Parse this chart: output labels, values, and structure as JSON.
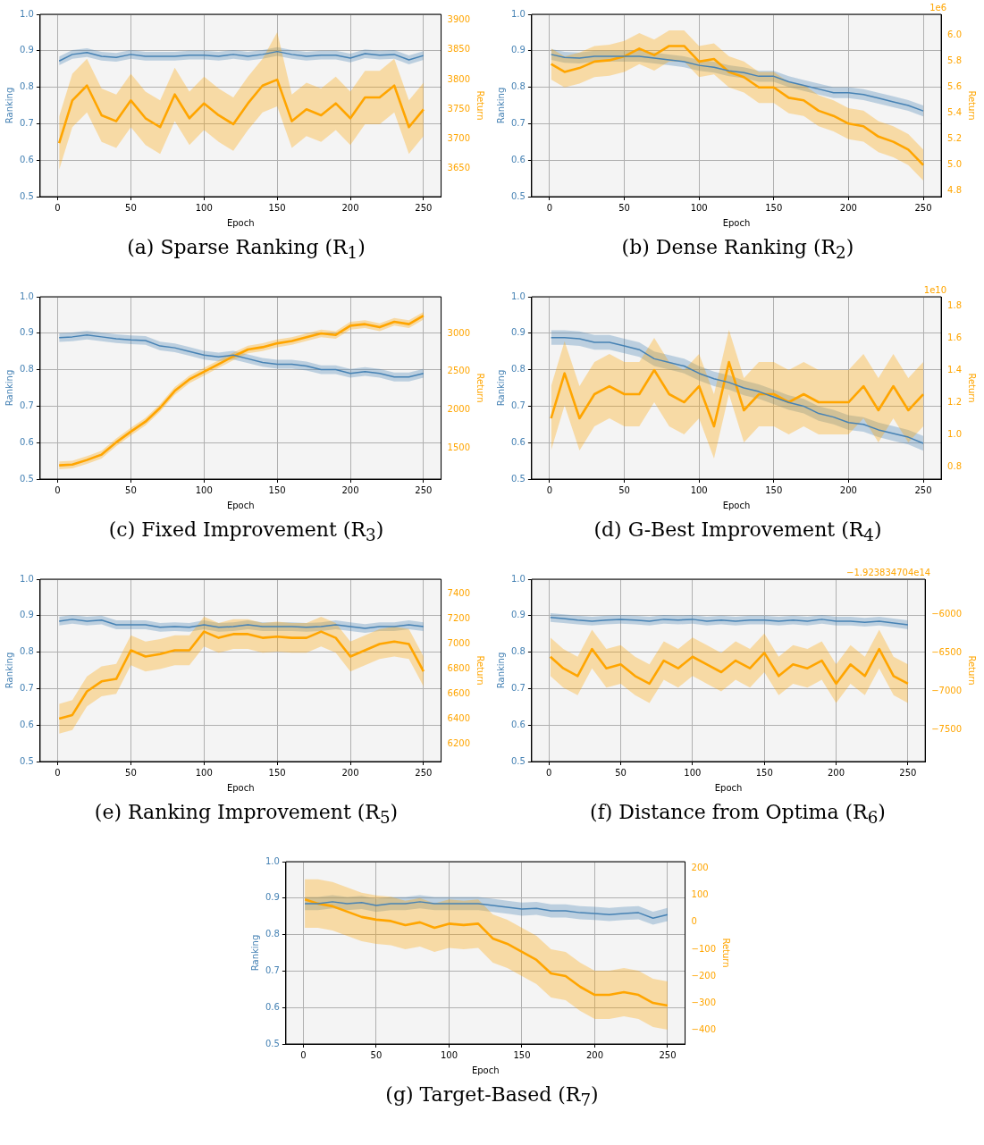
{
  "chart_data": [
    {
      "type": "line",
      "title": "(a) Sparse Ranking (R$_{1}$)",
      "xlabel": "Epoch",
      "ylabel": "Ranking",
      "y2label": "Return",
      "grid": true,
      "x": [
        1,
        10,
        20,
        30,
        40,
        50,
        60,
        70,
        80,
        90,
        100,
        110,
        120,
        130,
        140,
        150,
        160,
        170,
        180,
        190,
        200,
        210,
        220,
        230,
        240,
        250
      ],
      "xlim": [
        -12,
        262
      ],
      "xticks": [
        0,
        50,
        100,
        150,
        200,
        250
      ],
      "ylim": [
        0.5,
        1.0
      ],
      "yticks": [
        {
          "value": 0.5,
          "label": "0.5"
        },
        {
          "value": 0.6,
          "label": "0.6"
        },
        {
          "value": 0.7,
          "label": "0.7"
        },
        {
          "value": 0.8,
          "label": "0.8"
        },
        {
          "value": 0.9,
          "label": "0.9"
        },
        {
          "value": 1.0,
          "label": "1.0"
        }
      ],
      "y2lim": [
        3603,
        3910
      ],
      "y2ticks": [
        3650,
        3700,
        3750,
        3800,
        3850,
        3900
      ],
      "series": [
        {
          "color": "#4682b4",
          "values": [
            0.872,
            0.89,
            0.895,
            0.885,
            0.882,
            0.89,
            0.885,
            0.885,
            0.885,
            0.888,
            0.888,
            0.885,
            0.89,
            0.885,
            0.89,
            0.898,
            0.89,
            0.885,
            0.888,
            0.888,
            0.88,
            0.892,
            0.888,
            0.89,
            0.875,
            0.887
          ],
          "lower": [
            0.86,
            0.878,
            0.883,
            0.873,
            0.87,
            0.878,
            0.873,
            0.873,
            0.873,
            0.876,
            0.876,
            0.873,
            0.878,
            0.873,
            0.878,
            0.886,
            0.878,
            0.873,
            0.876,
            0.876,
            0.868,
            0.88,
            0.876,
            0.878,
            0.863,
            0.875
          ],
          "upper": [
            0.884,
            0.902,
            0.907,
            0.897,
            0.894,
            0.902,
            0.897,
            0.897,
            0.897,
            0.9,
            0.9,
            0.897,
            0.902,
            0.897,
            0.902,
            0.91,
            0.902,
            0.897,
            0.9,
            0.9,
            0.892,
            0.904,
            0.9,
            0.902,
            0.887,
            0.899
          ]
        },
        {
          "color": "#ffa500",
          "axis": "y2",
          "values": [
            3693,
            3765,
            3790,
            3740,
            3730,
            3765,
            3735,
            3720,
            3775,
            3735,
            3760,
            3740,
            3725,
            3760,
            3790,
            3800,
            3730,
            3750,
            3740,
            3760,
            3735,
            3770,
            3770,
            3790,
            3720,
            3750
          ],
          "lower": [
            3648,
            3720,
            3745,
            3695,
            3685,
            3720,
            3690,
            3675,
            3730,
            3690,
            3715,
            3695,
            3680,
            3715,
            3745,
            3755,
            3685,
            3705,
            3695,
            3715,
            3690,
            3725,
            3725,
            3745,
            3675,
            3705
          ],
          "upper": [
            3738,
            3810,
            3835,
            3785,
            3775,
            3810,
            3780,
            3765,
            3820,
            3780,
            3805,
            3785,
            3770,
            3805,
            3835,
            3880,
            3775,
            3795,
            3785,
            3805,
            3780,
            3815,
            3815,
            3835,
            3765,
            3795
          ]
        }
      ]
    },
    {
      "type": "line",
      "title": "(b) Dense Ranking (R$_{2}$)",
      "xlabel": "Epoch",
      "ylabel": "Ranking",
      "y2label": "Return",
      "grid": true,
      "annotations": [
        "1e6"
      ],
      "x": [
        1,
        10,
        20,
        30,
        40,
        50,
        60,
        70,
        80,
        90,
        100,
        110,
        120,
        130,
        140,
        150,
        160,
        170,
        180,
        190,
        200,
        210,
        220,
        230,
        240,
        250
      ],
      "xlim": [
        -12,
        262
      ],
      "xticks": [
        0,
        50,
        100,
        150,
        200,
        250
      ],
      "ylim": [
        0.5,
        1.0
      ],
      "yticks": [
        {
          "value": 0.5,
          "label": "0.5"
        },
        {
          "value": 0.6,
          "label": "0.6"
        },
        {
          "value": 0.7,
          "label": "0.7"
        },
        {
          "value": 0.8,
          "label": "0.8"
        },
        {
          "value": 0.9,
          "label": "0.9"
        },
        {
          "value": 1.0,
          "label": "1.0"
        }
      ],
      "y2lim": [
        4.756,
        6.165
      ],
      "y2ticks": [
        {
          "value": 4.8,
          "label": "4.8"
        },
        {
          "value": 5.0,
          "label": "5.0"
        },
        {
          "value": 5.2,
          "label": "5.2"
        },
        {
          "value": 5.4,
          "label": "5.4"
        },
        {
          "value": 5.6,
          "label": "5.6"
        },
        {
          "value": 5.8,
          "label": "5.8"
        },
        {
          "value": 6.0,
          "label": "6.0"
        }
      ],
      "series": [
        {
          "color": "#4682b4",
          "values": [
            0.89,
            0.882,
            0.88,
            0.885,
            0.885,
            0.885,
            0.885,
            0.88,
            0.875,
            0.87,
            0.86,
            0.855,
            0.845,
            0.84,
            0.83,
            0.83,
            0.815,
            0.805,
            0.795,
            0.785,
            0.785,
            0.78,
            0.77,
            0.76,
            0.75,
            0.735
          ],
          "lower": [
            0.875,
            0.867,
            0.865,
            0.87,
            0.87,
            0.87,
            0.87,
            0.865,
            0.86,
            0.855,
            0.845,
            0.84,
            0.83,
            0.825,
            0.815,
            0.815,
            0.8,
            0.79,
            0.78,
            0.77,
            0.77,
            0.765,
            0.755,
            0.745,
            0.735,
            0.72
          ],
          "upper": [
            0.905,
            0.897,
            0.895,
            0.9,
            0.9,
            0.9,
            0.9,
            0.895,
            0.89,
            0.885,
            0.875,
            0.87,
            0.86,
            0.855,
            0.845,
            0.845,
            0.83,
            0.82,
            0.81,
            0.8,
            0.8,
            0.795,
            0.785,
            0.775,
            0.765,
            0.75
          ]
        },
        {
          "color": "#ffa500",
          "axis": "y2",
          "values": [
            5.78,
            5.72,
            5.75,
            5.8,
            5.81,
            5.84,
            5.9,
            5.85,
            5.92,
            5.92,
            5.8,
            5.82,
            5.72,
            5.68,
            5.6,
            5.6,
            5.52,
            5.5,
            5.42,
            5.38,
            5.32,
            5.3,
            5.22,
            5.18,
            5.12,
            5.0
          ],
          "lower": [
            5.66,
            5.6,
            5.63,
            5.68,
            5.69,
            5.72,
            5.78,
            5.73,
            5.8,
            5.8,
            5.68,
            5.7,
            5.6,
            5.56,
            5.48,
            5.48,
            5.4,
            5.38,
            5.3,
            5.26,
            5.2,
            5.18,
            5.1,
            5.06,
            5.0,
            4.88
          ],
          "upper": [
            5.9,
            5.84,
            5.87,
            5.92,
            5.93,
            5.96,
            6.02,
            5.97,
            6.04,
            6.04,
            5.92,
            5.94,
            5.84,
            5.8,
            5.72,
            5.72,
            5.64,
            5.62,
            5.54,
            5.5,
            5.44,
            5.42,
            5.34,
            5.3,
            5.24,
            5.12
          ]
        }
      ]
    },
    {
      "type": "line",
      "title": "(c) Fixed Improvement (R$_{3}$)",
      "xlabel": "Epoch",
      "ylabel": "Ranking",
      "y2label": "Return",
      "grid": true,
      "x": [
        1,
        10,
        20,
        30,
        40,
        50,
        60,
        70,
        80,
        90,
        100,
        110,
        120,
        130,
        140,
        150,
        160,
        170,
        180,
        190,
        200,
        210,
        220,
        230,
        240,
        250
      ],
      "xlim": [
        -12,
        262
      ],
      "xticks": [
        0,
        50,
        100,
        150,
        200,
        250
      ],
      "ylim": [
        0.5,
        1.0
      ],
      "yticks": [
        {
          "value": 0.5,
          "label": "0.5"
        },
        {
          "value": 0.6,
          "label": "0.6"
        },
        {
          "value": 0.7,
          "label": "0.7"
        },
        {
          "value": 0.8,
          "label": "0.8"
        },
        {
          "value": 0.9,
          "label": "0.9"
        },
        {
          "value": 1.0,
          "label": "1.0"
        }
      ],
      "y2lim": [
        1101,
        3477
      ],
      "y2ticks": [
        1500,
        2000,
        2500,
        3000
      ],
      "series": [
        {
          "color": "#4682b4",
          "values": [
            0.888,
            0.89,
            0.895,
            0.89,
            0.885,
            0.882,
            0.88,
            0.865,
            0.86,
            0.85,
            0.84,
            0.835,
            0.84,
            0.83,
            0.82,
            0.815,
            0.815,
            0.81,
            0.8,
            0.8,
            0.79,
            0.795,
            0.79,
            0.78,
            0.78,
            0.79
          ],
          "lower": [
            0.876,
            0.878,
            0.883,
            0.878,
            0.873,
            0.87,
            0.868,
            0.853,
            0.848,
            0.838,
            0.828,
            0.823,
            0.828,
            0.818,
            0.808,
            0.803,
            0.803,
            0.798,
            0.788,
            0.788,
            0.778,
            0.783,
            0.778,
            0.768,
            0.768,
            0.778
          ],
          "upper": [
            0.9,
            0.902,
            0.907,
            0.902,
            0.897,
            0.894,
            0.892,
            0.877,
            0.872,
            0.862,
            0.852,
            0.847,
            0.852,
            0.842,
            0.832,
            0.827,
            0.827,
            0.822,
            0.812,
            0.812,
            0.802,
            0.807,
            0.802,
            0.792,
            0.792,
            0.802
          ]
        },
        {
          "color": "#ffa500",
          "axis": "y2",
          "values": [
            1280,
            1290,
            1350,
            1420,
            1580,
            1720,
            1850,
            2030,
            2250,
            2400,
            2500,
            2600,
            2700,
            2790,
            2820,
            2870,
            2900,
            2950,
            3000,
            2980,
            3100,
            3120,
            3080,
            3150,
            3120,
            3230
          ],
          "lower": [
            1230,
            1240,
            1300,
            1370,
            1530,
            1670,
            1800,
            1980,
            2200,
            2350,
            2450,
            2550,
            2650,
            2740,
            2770,
            2820,
            2850,
            2900,
            2950,
            2930,
            3050,
            3070,
            3030,
            3100,
            3070,
            3180
          ],
          "upper": [
            1330,
            1340,
            1400,
            1470,
            1630,
            1770,
            1900,
            2080,
            2300,
            2450,
            2550,
            2650,
            2750,
            2840,
            2870,
            2920,
            2950,
            3000,
            3050,
            3030,
            3150,
            3170,
            3130,
            3200,
            3170,
            3280
          ]
        }
      ]
    },
    {
      "type": "line",
      "title": "(d) G-Best Improvement (R$_{4}$)",
      "xlabel": "Epoch",
      "ylabel": "Ranking",
      "y2label": "Return",
      "grid": true,
      "annotations": [
        "1e10"
      ],
      "x": [
        1,
        10,
        20,
        30,
        40,
        50,
        60,
        70,
        80,
        90,
        100,
        110,
        120,
        130,
        140,
        150,
        160,
        170,
        180,
        190,
        200,
        210,
        220,
        230,
        240,
        250
      ],
      "xlim": [
        -12,
        262
      ],
      "xticks": [
        0,
        50,
        100,
        150,
        200,
        250
      ],
      "ylim": [
        0.5,
        1.0
      ],
      "yticks": [
        {
          "value": 0.5,
          "label": "0.5"
        },
        {
          "value": 0.6,
          "label": "0.6"
        },
        {
          "value": 0.7,
          "label": "0.7"
        },
        {
          "value": 0.8,
          "label": "0.8"
        },
        {
          "value": 0.9,
          "label": "0.9"
        },
        {
          "value": 1.0,
          "label": "1.0"
        }
      ],
      "y2lim": [
        0.722,
        1.856
      ],
      "y2ticks": [
        {
          "value": 0.8,
          "label": "0.8"
        },
        {
          "value": 1.0,
          "label": "1.0"
        },
        {
          "value": 1.2,
          "label": "1.2"
        },
        {
          "value": 1.4,
          "label": "1.4"
        },
        {
          "value": 1.6,
          "label": "1.6"
        },
        {
          "value": 1.8,
          "label": "1.8"
        }
      ],
      "series": [
        {
          "color": "#4682b4",
          "values": [
            0.888,
            0.888,
            0.885,
            0.875,
            0.875,
            0.865,
            0.855,
            0.83,
            0.82,
            0.81,
            0.79,
            0.775,
            0.765,
            0.75,
            0.74,
            0.725,
            0.71,
            0.7,
            0.68,
            0.67,
            0.655,
            0.65,
            0.635,
            0.625,
            0.615,
            0.598
          ],
          "lower": [
            0.868,
            0.868,
            0.865,
            0.855,
            0.855,
            0.845,
            0.835,
            0.81,
            0.8,
            0.79,
            0.77,
            0.755,
            0.745,
            0.73,
            0.72,
            0.705,
            0.69,
            0.68,
            0.66,
            0.65,
            0.635,
            0.63,
            0.615,
            0.605,
            0.595,
            0.578
          ],
          "upper": [
            0.908,
            0.908,
            0.905,
            0.895,
            0.895,
            0.885,
            0.875,
            0.85,
            0.84,
            0.83,
            0.81,
            0.795,
            0.785,
            0.77,
            0.76,
            0.745,
            0.73,
            0.72,
            0.7,
            0.69,
            0.675,
            0.67,
            0.655,
            0.645,
            0.635,
            0.618
          ]
        },
        {
          "color": "#ffa500",
          "axis": "y2",
          "values": [
            1.1,
            1.38,
            1.1,
            1.25,
            1.3,
            1.25,
            1.25,
            1.4,
            1.25,
            1.2,
            1.3,
            1.05,
            1.45,
            1.15,
            1.25,
            1.25,
            1.2,
            1.25,
            1.2,
            1.2,
            1.2,
            1.3,
            1.15,
            1.3,
            1.15,
            1.25
          ],
          "lower": [
            0.9,
            1.18,
            0.9,
            1.05,
            1.1,
            1.05,
            1.05,
            1.2,
            1.05,
            1.0,
            1.1,
            0.85,
            1.25,
            0.95,
            1.05,
            1.05,
            1.0,
            1.05,
            1.0,
            1.0,
            1.0,
            1.1,
            0.95,
            1.1,
            0.95,
            1.05
          ],
          "upper": [
            1.3,
            1.58,
            1.3,
            1.45,
            1.5,
            1.45,
            1.45,
            1.6,
            1.45,
            1.4,
            1.5,
            1.25,
            1.65,
            1.35,
            1.45,
            1.45,
            1.4,
            1.45,
            1.4,
            1.4,
            1.4,
            1.5,
            1.35,
            1.5,
            1.35,
            1.45
          ]
        }
      ]
    },
    {
      "type": "line",
      "title": "(e) Ranking Improvement (R$_{5}$)",
      "xlabel": "Epoch",
      "ylabel": "Ranking",
      "y2label": "Return",
      "grid": true,
      "x": [
        1,
        10,
        20,
        30,
        40,
        50,
        60,
        70,
        80,
        90,
        100,
        110,
        120,
        130,
        140,
        150,
        160,
        170,
        180,
        190,
        200,
        210,
        220,
        230,
        240,
        250
      ],
      "xlim": [
        -12,
        262
      ],
      "xticks": [
        0,
        50,
        100,
        150,
        200,
        250
      ],
      "ylim": [
        0.5,
        1.0
      ],
      "yticks": [
        {
          "value": 0.5,
          "label": "0.5"
        },
        {
          "value": 0.6,
          "label": "0.6"
        },
        {
          "value": 0.7,
          "label": "0.7"
        },
        {
          "value": 0.8,
          "label": "0.8"
        },
        {
          "value": 0.9,
          "label": "0.9"
        },
        {
          "value": 1.0,
          "label": "1.0"
        }
      ],
      "y2lim": [
        6056,
        7521
      ],
      "y2ticks": [
        6200,
        6400,
        6600,
        6800,
        7000,
        7200,
        7400
      ],
      "series": [
        {
          "color": "#4682b4",
          "values": [
            0.885,
            0.89,
            0.885,
            0.888,
            0.875,
            0.875,
            0.875,
            0.868,
            0.87,
            0.868,
            0.875,
            0.868,
            0.87,
            0.875,
            0.87,
            0.87,
            0.87,
            0.868,
            0.87,
            0.875,
            0.87,
            0.865,
            0.87,
            0.87,
            0.875,
            0.87
          ],
          "lower": [
            0.873,
            0.878,
            0.873,
            0.876,
            0.863,
            0.863,
            0.863,
            0.856,
            0.858,
            0.856,
            0.863,
            0.856,
            0.858,
            0.863,
            0.858,
            0.858,
            0.858,
            0.856,
            0.858,
            0.863,
            0.858,
            0.853,
            0.858,
            0.858,
            0.863,
            0.858
          ],
          "upper": [
            0.897,
            0.902,
            0.897,
            0.9,
            0.887,
            0.887,
            0.887,
            0.88,
            0.882,
            0.88,
            0.887,
            0.88,
            0.882,
            0.887,
            0.882,
            0.882,
            0.882,
            0.88,
            0.882,
            0.887,
            0.882,
            0.877,
            0.882,
            0.882,
            0.887,
            0.882
          ]
        },
        {
          "color": "#ffa500",
          "axis": "y2",
          "values": [
            6400,
            6430,
            6620,
            6700,
            6720,
            6950,
            6900,
            6920,
            6950,
            6950,
            7100,
            7050,
            7080,
            7080,
            7050,
            7060,
            7050,
            7050,
            7100,
            7050,
            6900,
            6950,
            7000,
            7020,
            7000,
            6780
          ],
          "lower": [
            6280,
            6310,
            6500,
            6580,
            6600,
            6830,
            6780,
            6800,
            6830,
            6830,
            6980,
            6930,
            6960,
            6960,
            6930,
            6940,
            6930,
            6930,
            6980,
            6930,
            6780,
            6830,
            6880,
            6900,
            6880,
            6660
          ],
          "upper": [
            6520,
            6550,
            6740,
            6820,
            6840,
            7070,
            7020,
            7040,
            7070,
            7070,
            7220,
            7170,
            7200,
            7200,
            7170,
            7180,
            7170,
            7170,
            7220,
            7170,
            7020,
            7070,
            7120,
            7140,
            7120,
            6900
          ]
        }
      ]
    },
    {
      "type": "line",
      "title": "(f) Distance from Optima (R$_{6}$)",
      "xlabel": "Epoch",
      "ylabel": "Ranking",
      "y2label": "Return",
      "grid": true,
      "annotations": [
        "−1.923834704e14"
      ],
      "x": [
        1,
        10,
        20,
        30,
        40,
        50,
        60,
        70,
        80,
        90,
        100,
        110,
        120,
        130,
        140,
        150,
        160,
        170,
        180,
        190,
        200,
        210,
        220,
        230,
        240,
        250
      ],
      "xlim": [
        -12,
        262
      ],
      "xticks": [
        0,
        50,
        100,
        150,
        200,
        250
      ],
      "ylim": [
        0.5,
        1.0
      ],
      "yticks": [
        {
          "value": 0.5,
          "label": "0.5"
        },
        {
          "value": 0.6,
          "label": "0.6"
        },
        {
          "value": 0.7,
          "label": "0.7"
        },
        {
          "value": 0.8,
          "label": "0.8"
        },
        {
          "value": 0.9,
          "label": "0.9"
        },
        {
          "value": 1.0,
          "label": "1.0"
        }
      ],
      "y2lim": [
        -7910,
        -5544
      ],
      "y2ticks": [
        {
          "value": -7500,
          "label": "−7500"
        },
        {
          "value": -7000,
          "label": "−7000"
        },
        {
          "value": -6500,
          "label": "−6500"
        },
        {
          "value": -6000,
          "label": "−6000"
        }
      ],
      "series": [
        {
          "color": "#4682b4",
          "values": [
            0.895,
            0.892,
            0.888,
            0.885,
            0.888,
            0.89,
            0.888,
            0.885,
            0.89,
            0.888,
            0.89,
            0.885,
            0.888,
            0.885,
            0.888,
            0.888,
            0.885,
            0.888,
            0.885,
            0.89,
            0.885,
            0.885,
            0.882,
            0.885,
            0.88,
            0.875
          ],
          "lower": [
            0.883,
            0.88,
            0.876,
            0.873,
            0.876,
            0.878,
            0.876,
            0.873,
            0.878,
            0.876,
            0.878,
            0.873,
            0.876,
            0.873,
            0.876,
            0.876,
            0.873,
            0.876,
            0.873,
            0.878,
            0.873,
            0.873,
            0.87,
            0.873,
            0.868,
            0.863
          ],
          "upper": [
            0.907,
            0.904,
            0.9,
            0.897,
            0.9,
            0.902,
            0.9,
            0.897,
            0.902,
            0.9,
            0.902,
            0.897,
            0.9,
            0.897,
            0.9,
            0.9,
            0.897,
            0.9,
            0.897,
            0.902,
            0.897,
            0.897,
            0.894,
            0.897,
            0.892,
            0.887
          ]
        },
        {
          "color": "#ffa500",
          "axis": "y2",
          "values": [
            -6550,
            -6700,
            -6800,
            -6450,
            -6700,
            -6650,
            -6800,
            -6900,
            -6600,
            -6700,
            -6550,
            -6650,
            -6750,
            -6600,
            -6700,
            -6500,
            -6800,
            -6650,
            -6700,
            -6600,
            -6900,
            -6650,
            -6800,
            -6450,
            -6800,
            -6900
          ],
          "lower": [
            -6800,
            -6950,
            -7050,
            -6700,
            -6950,
            -6900,
            -7050,
            -7150,
            -6850,
            -6950,
            -6800,
            -6900,
            -7000,
            -6850,
            -6950,
            -6750,
            -7050,
            -6900,
            -6950,
            -6850,
            -7150,
            -6900,
            -7050,
            -6700,
            -7050,
            -7150
          ],
          "upper": [
            -6300,
            -6450,
            -6550,
            -6200,
            -6450,
            -6400,
            -6550,
            -6650,
            -6350,
            -6450,
            -6300,
            -6400,
            -6500,
            -6350,
            -6450,
            -6250,
            -6550,
            -6400,
            -6450,
            -6350,
            -6650,
            -6400,
            -6550,
            -6200,
            -6550,
            -6650
          ]
        }
      ]
    },
    {
      "type": "line",
      "title": "(g) Target-Based (R$_{7}$)",
      "xlabel": "Epoch",
      "ylabel": "Ranking",
      "y2label": "Return",
      "grid": true,
      "x": [
        1,
        10,
        20,
        30,
        40,
        50,
        60,
        70,
        80,
        90,
        100,
        110,
        120,
        130,
        140,
        150,
        160,
        170,
        180,
        190,
        200,
        210,
        220,
        230,
        240,
        250
      ],
      "xlim": [
        -12,
        262
      ],
      "xticks": [
        0,
        50,
        100,
        150,
        200,
        250
      ],
      "ylim": [
        0.5,
        1.0
      ],
      "yticks": [
        {
          "value": 0.5,
          "label": "0.5"
        },
        {
          "value": 0.6,
          "label": "0.6"
        },
        {
          "value": 0.7,
          "label": "0.7"
        },
        {
          "value": 0.8,
          "label": "0.8"
        },
        {
          "value": 0.9,
          "label": "0.9"
        },
        {
          "value": 1.0,
          "label": "1.0"
        }
      ],
      "y2lim": [
        -453,
        226
      ],
      "y2ticks": [
        {
          "value": -400,
          "label": "−400"
        },
        {
          "value": -300,
          "label": "−300"
        },
        {
          "value": -200,
          "label": "−200"
        },
        {
          "value": -100,
          "label": "−100"
        },
        0,
        100,
        200
      ],
      "series": [
        {
          "color": "#4682b4",
          "values": [
            0.885,
            0.885,
            0.89,
            0.885,
            0.888,
            0.88,
            0.885,
            0.885,
            0.89,
            0.885,
            0.885,
            0.885,
            0.885,
            0.88,
            0.875,
            0.87,
            0.872,
            0.865,
            0.865,
            0.86,
            0.858,
            0.855,
            0.858,
            0.86,
            0.845,
            0.855
          ],
          "lower": [
            0.867,
            0.867,
            0.872,
            0.867,
            0.87,
            0.862,
            0.867,
            0.867,
            0.872,
            0.867,
            0.867,
            0.867,
            0.867,
            0.862,
            0.857,
            0.852,
            0.854,
            0.847,
            0.847,
            0.842,
            0.84,
            0.837,
            0.84,
            0.842,
            0.827,
            0.837
          ],
          "upper": [
            0.903,
            0.903,
            0.908,
            0.903,
            0.906,
            0.898,
            0.903,
            0.903,
            0.908,
            0.903,
            0.903,
            0.903,
            0.903,
            0.898,
            0.893,
            0.888,
            0.89,
            0.883,
            0.883,
            0.878,
            0.876,
            0.873,
            0.876,
            0.878,
            0.863,
            0.873
          ]
        },
        {
          "color": "#ffa500",
          "axis": "y2",
          "values": [
            85,
            70,
            60,
            40,
            20,
            10,
            5,
            -10,
            0,
            -20,
            -5,
            -10,
            -5,
            -60,
            -80,
            -110,
            -140,
            -190,
            -200,
            -240,
            -270,
            -270,
            -260,
            -270,
            -300,
            -310
          ],
          "lower": [
            -20,
            -20,
            -30,
            -50,
            -70,
            -80,
            -85,
            -100,
            -90,
            -110,
            -95,
            -100,
            -95,
            -150,
            -170,
            -200,
            -230,
            -280,
            -290,
            -330,
            -360,
            -360,
            -350,
            -360,
            -390,
            -400
          ],
          "upper": [
            160,
            160,
            150,
            130,
            110,
            100,
            95,
            80,
            90,
            70,
            85,
            80,
            85,
            30,
            10,
            -20,
            -50,
            -100,
            -110,
            -150,
            -180,
            -180,
            -170,
            -180,
            -210,
            -220
          ]
        }
      ]
    }
  ]
}
